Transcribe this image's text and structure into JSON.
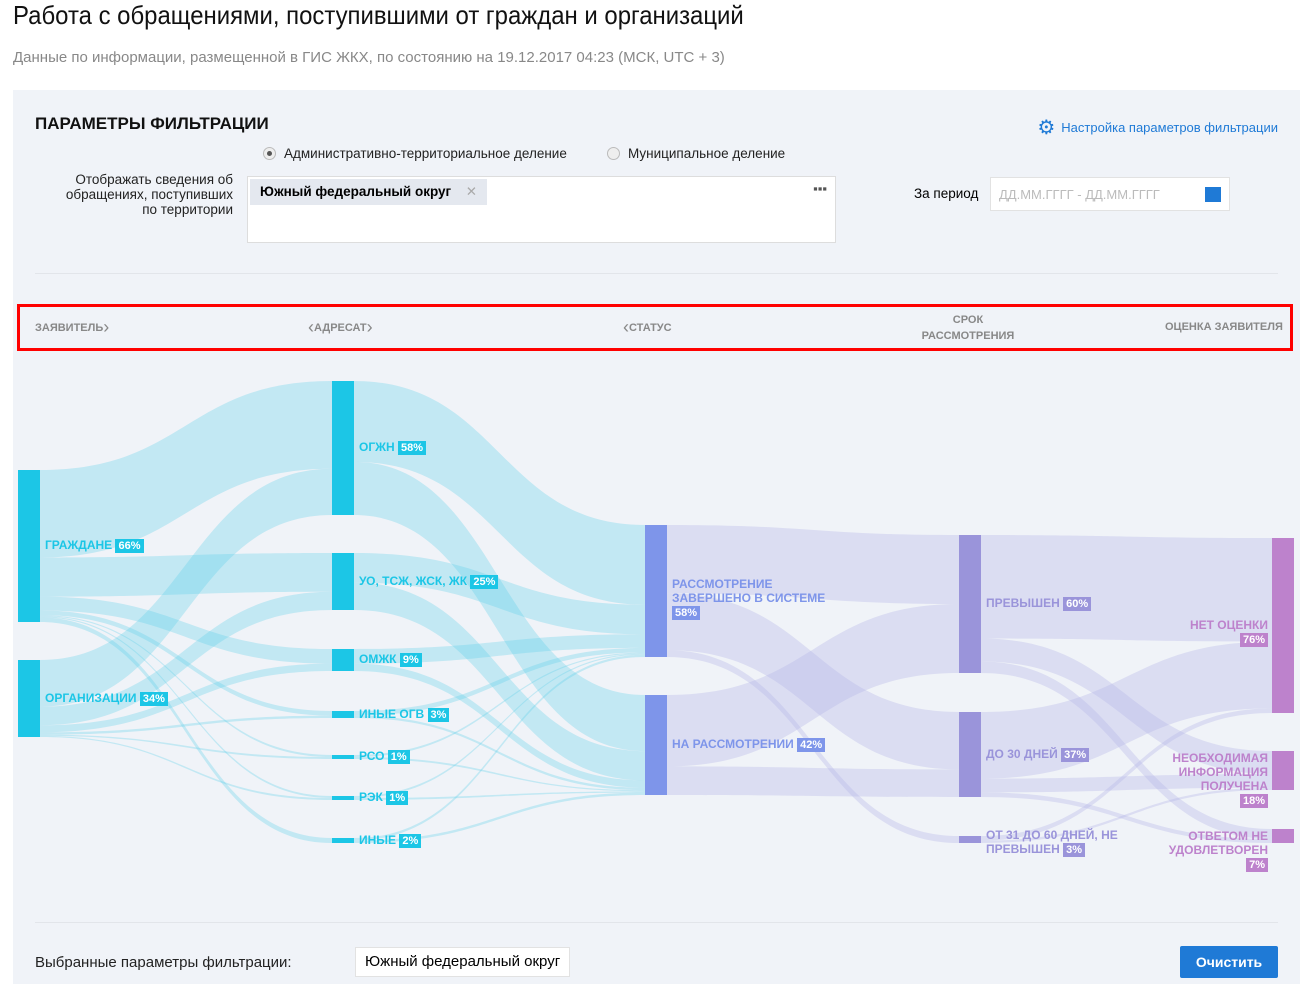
{
  "title": "Работа с обращениями, поступившими от граждан и организаций",
  "subtitle": "Данные по информации, размещенной в ГИС ЖКХ, по состоянию на 19.12.2017 04:23 (МСК, UTC + 3)",
  "filters": {
    "heading": "ПАРАМЕТРЫ ФИЛЬТРАЦИИ",
    "settings_link": "Настройка параметров фильтрации",
    "radio_options": [
      {
        "label": "Административно-территориальное деление",
        "selected": true
      },
      {
        "label": "Муниципальное деление",
        "selected": false
      }
    ],
    "territory_label": "Отображать сведения об обращениях, поступивших по территории",
    "territory_chip": "Южный федеральный округ",
    "period_label": "За период",
    "period_placeholder": "ДД.ММ.ГГГГ  -  ДД.ММ.ГГГГ"
  },
  "stages": [
    "ЗАЯВИТЕЛЬ",
    "АДРЕСАТ",
    "СТАТУС",
    "СРОК РАССМОТРЕНИЯ",
    "ОЦЕНКА ЗАЯВИТЕЛЯ"
  ],
  "chart_data": {
    "type": "sankey",
    "colors": [
      "#1cc6e6",
      "#1cc6e6",
      "#7e95ea",
      "#9a94da",
      "#bd82cc"
    ],
    "nodes": [
      {
        "col": 0,
        "name": "ГРАЖДАНЕ",
        "pct": "66%"
      },
      {
        "col": 0,
        "name": "ОРГАНИЗАЦИИ",
        "pct": "34%"
      },
      {
        "col": 1,
        "name": "ОГЖН",
        "pct": "58%"
      },
      {
        "col": 1,
        "name": "УО, ТСЖ, ЖСК, ЖК",
        "pct": "25%"
      },
      {
        "col": 1,
        "name": "ОМЖК",
        "pct": "9%"
      },
      {
        "col": 1,
        "name": "ИНЫЕ ОГВ",
        "pct": "3%"
      },
      {
        "col": 1,
        "name": "РСО",
        "pct": "1%"
      },
      {
        "col": 1,
        "name": "РЭК",
        "pct": "1%"
      },
      {
        "col": 1,
        "name": "ИНЫЕ",
        "pct": "2%"
      },
      {
        "col": 2,
        "name": "РАССМОТРЕНИЕ ЗАВЕРШЕНО В СИСТЕМЕ",
        "pct": "58%"
      },
      {
        "col": 2,
        "name": "НА РАССМОТРЕНИИ",
        "pct": "42%"
      },
      {
        "col": 3,
        "name": "ПРЕВЫШЕН",
        "pct": "60%"
      },
      {
        "col": 3,
        "name": "ДО 30 ДНЕЙ",
        "pct": "37%"
      },
      {
        "col": 3,
        "name": "ОТ 31 ДО 60 ДНЕЙ, НЕ ПРЕВЫШЕН",
        "pct": "3%"
      },
      {
        "col": 4,
        "name": "НЕТ ОЦЕНКИ",
        "pct": "76%"
      },
      {
        "col": 4,
        "name": "НЕОБХОДИМАЯ ИНФОРМАЦИЯ ПОЛУЧЕНА",
        "pct": "18%"
      },
      {
        "col": 4,
        "name": "ОТВЕТОМ НЕ УДОВЛЕТВОРЕН",
        "pct": "7%"
      }
    ],
    "links": [
      [
        0,
        2,
        38
      ],
      [
        0,
        3,
        17
      ],
      [
        0,
        4,
        6
      ],
      [
        0,
        5,
        2
      ],
      [
        0,
        6,
        0.5
      ],
      [
        0,
        7,
        0.5
      ],
      [
        0,
        8,
        2
      ],
      [
        1,
        2,
        20
      ],
      [
        1,
        3,
        8
      ],
      [
        1,
        4,
        3
      ],
      [
        1,
        5,
        1
      ],
      [
        1,
        6,
        0.5
      ],
      [
        1,
        7,
        0.5
      ],
      [
        2,
        9,
        35
      ],
      [
        2,
        10,
        23
      ],
      [
        3,
        9,
        13
      ],
      [
        3,
        10,
        12
      ],
      [
        4,
        9,
        6
      ],
      [
        4,
        10,
        3
      ],
      [
        5,
        9,
        2
      ],
      [
        5,
        10,
        1
      ],
      [
        6,
        9,
        0.5
      ],
      [
        6,
        10,
        0.5
      ],
      [
        7,
        9,
        0.5
      ],
      [
        7,
        10,
        0.5
      ],
      [
        8,
        9,
        1
      ],
      [
        8,
        10,
        1
      ],
      [
        9,
        11,
        30
      ],
      [
        9,
        12,
        25
      ],
      [
        9,
        13,
        3
      ],
      [
        10,
        11,
        30
      ],
      [
        10,
        12,
        12
      ],
      [
        11,
        14,
        45
      ],
      [
        11,
        15,
        10
      ],
      [
        11,
        16,
        5
      ],
      [
        12,
        14,
        29
      ],
      [
        12,
        15,
        6
      ],
      [
        12,
        16,
        2
      ],
      [
        13,
        14,
        2
      ],
      [
        13,
        15,
        1
      ]
    ]
  },
  "footer": {
    "selected_label": "Выбранные параметры фильтрации:",
    "selected_value": "Южный федеральный округ",
    "clear_button": "Очистить"
  }
}
